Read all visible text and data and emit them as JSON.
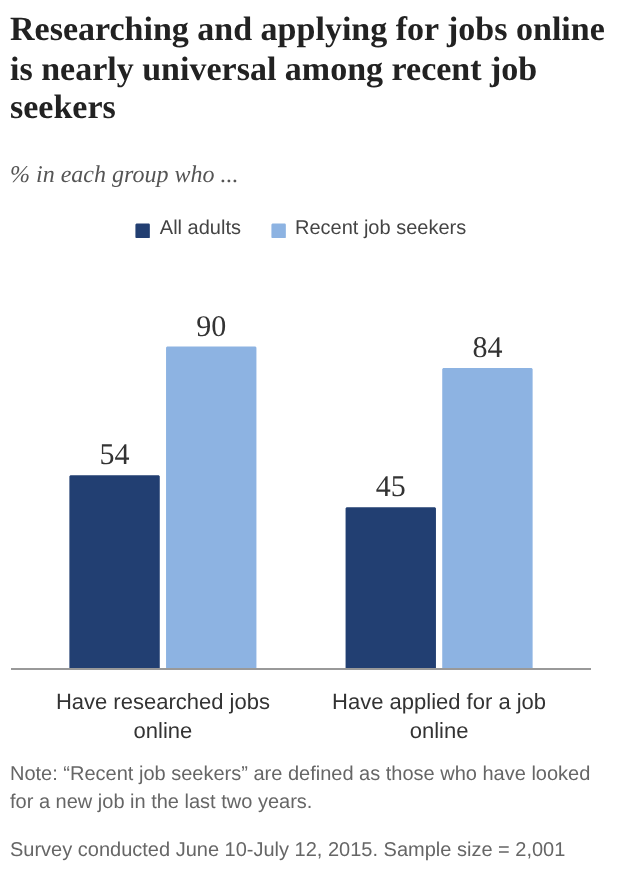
{
  "chart_data": {
    "type": "bar",
    "title": "Researching and applying for jobs online is nearly universal among recent job seekers",
    "subtitle": "% in each group who ...",
    "categories": [
      "Have researched jobs online",
      "Have applied for a job online"
    ],
    "series": [
      {
        "name": "All adults",
        "color": "#223f72",
        "values": [
          54,
          45
        ]
      },
      {
        "name": "Recent job seekers",
        "color": "#8db3e2",
        "values": [
          90,
          84
        ]
      }
    ],
    "data_labels": true,
    "legend": "top",
    "grid": false,
    "annotations": [
      "Note: “Recent job seekers” are defined as those who have looked for a new job in the last two years.",
      "Survey conducted June 10-July 12, 2015. Sample size = 2,001"
    ]
  }
}
